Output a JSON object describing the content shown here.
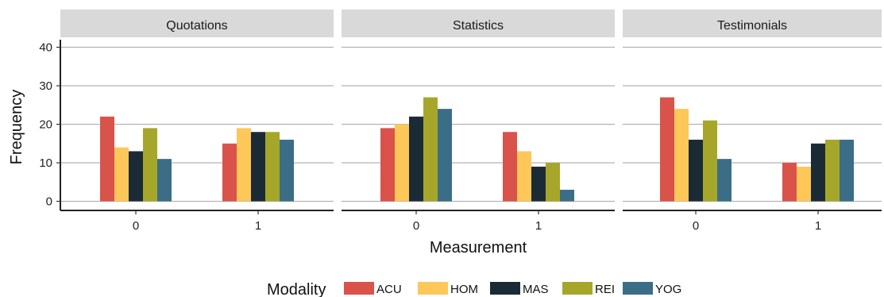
{
  "chart_data": {
    "type": "bar",
    "facets": [
      "Quotations",
      "Statistics",
      "Testimonials"
    ],
    "categories": [
      "0",
      "1"
    ],
    "xlabel": "Measurement",
    "ylabel": "Frequency",
    "ylim": [
      0,
      40
    ],
    "yticks": [
      0,
      10,
      20,
      30,
      40
    ],
    "grid": true,
    "legend": {
      "title": "Modality",
      "position": "bottom",
      "entries": [
        "ACU",
        "HOM",
        "MAS",
        "REI",
        "YOG"
      ]
    },
    "series": [
      {
        "name": "ACU",
        "color": "#d9534a",
        "values": {
          "Quotations": [
            22,
            15
          ],
          "Statistics": [
            19,
            18
          ],
          "Testimonials": [
            27,
            10
          ]
        }
      },
      {
        "name": "HOM",
        "color": "#fdc75a",
        "values": {
          "Quotations": [
            14,
            19
          ],
          "Statistics": [
            20,
            13
          ],
          "Testimonials": [
            24,
            9
          ]
        }
      },
      {
        "name": "MAS",
        "color": "#1b2b36",
        "values": {
          "Quotations": [
            13,
            18
          ],
          "Statistics": [
            22,
            9
          ],
          "Testimonials": [
            16,
            15
          ]
        }
      },
      {
        "name": "REI",
        "color": "#a6a72a",
        "values": {
          "Quotations": [
            19,
            18
          ],
          "Statistics": [
            27,
            10
          ],
          "Testimonials": [
            21,
            16
          ]
        }
      },
      {
        "name": "YOG",
        "color": "#3b6e86",
        "values": {
          "Quotations": [
            11,
            16
          ],
          "Statistics": [
            24,
            3
          ],
          "Testimonials": [
            11,
            16
          ]
        }
      }
    ]
  }
}
